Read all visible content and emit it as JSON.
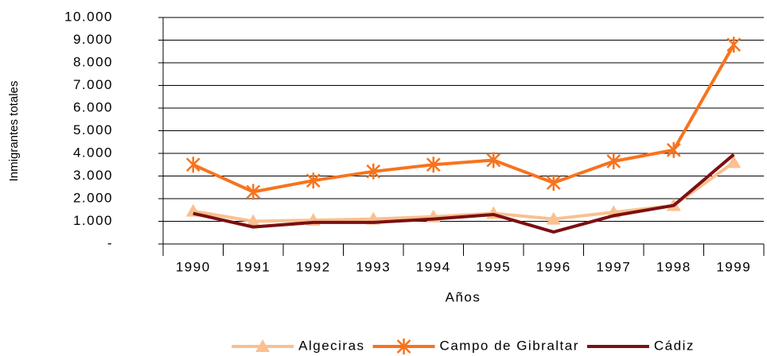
{
  "chart_data": {
    "type": "line",
    "x_label": "Años",
    "y_label": "Inmigrantes totales",
    "categories": [
      "1990",
      "1991",
      "1992",
      "1993",
      "1994",
      "1995",
      "1996",
      "1997",
      "1998",
      "1999"
    ],
    "series": [
      {
        "name": "Algeciras",
        "color": "#fac090",
        "marker": "triangle",
        "values": [
          1450,
          1000,
          1050,
          1100,
          1200,
          1350,
          1100,
          1400,
          1700,
          3600
        ]
      },
      {
        "name": "Campo de Gibraltar",
        "color": "#f7731e",
        "marker": "star",
        "values": [
          3500,
          2300,
          2800,
          3200,
          3500,
          3700,
          2700,
          3650,
          4150,
          8800
        ]
      },
      {
        "name": "Cádiz",
        "color": "#7b1012",
        "marker": "none",
        "values": [
          1350,
          750,
          950,
          950,
          1100,
          1300,
          530,
          1250,
          1700,
          3950
        ]
      }
    ],
    "ylim": [
      0,
      10000
    ],
    "yticks": [
      {
        "value": 0,
        "label": "-"
      },
      {
        "value": 1000,
        "label": "1.000"
      },
      {
        "value": 2000,
        "label": "2.000"
      },
      {
        "value": 3000,
        "label": "3.000"
      },
      {
        "value": 4000,
        "label": "4.000"
      },
      {
        "value": 5000,
        "label": "5.000"
      },
      {
        "value": 6000,
        "label": "6.000"
      },
      {
        "value": 7000,
        "label": "7.000"
      },
      {
        "value": 8000,
        "label": "8.000"
      },
      {
        "value": 9000,
        "label": "9.000"
      },
      {
        "value": 10000,
        "label": "10.000"
      }
    ],
    "grid": true,
    "legend": "bottom"
  }
}
